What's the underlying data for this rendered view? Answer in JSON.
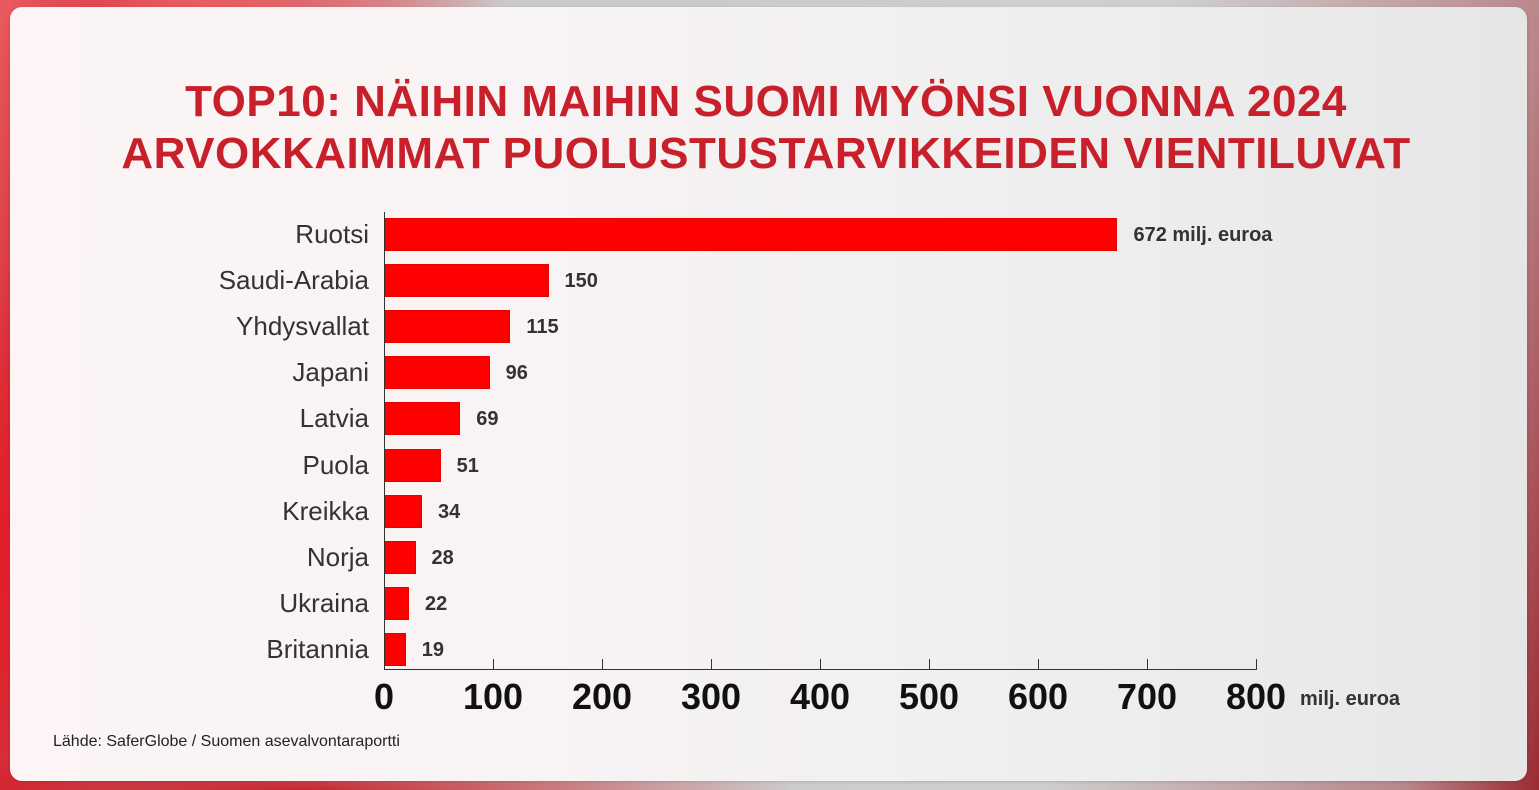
{
  "title": {
    "line1": "TOP10: NÄIHIN MAIHIN SUOMI MYÖNSI VUONNA 2024",
    "line2": "ARVOKKAIMMAT PUOLUSTUSTARVIKKEIDEN VIENTILUVAT"
  },
  "source": "Lähde: SaferGlobe / Suomen asevalvontaraportti",
  "colors": {
    "title": "#c8202b",
    "bar": "#ff0000",
    "text": "#333333"
  },
  "chart_data": {
    "type": "bar",
    "orientation": "horizontal",
    "title": "TOP10: NÄIHIN MAIHIN SUOMI MYÖNSI VUONNA 2024 ARVOKKAIMMAT PUOLUSTUSTARVIKKEIDEN VIENTILUVAT",
    "categories": [
      "Ruotsi",
      "Saudi-Arabia",
      "Yhdysvallat",
      "Japani",
      "Latvia",
      "Puola",
      "Kreikka",
      "Norja",
      "Ukraina",
      "Britannia"
    ],
    "values": [
      672,
      150,
      115,
      96,
      69,
      51,
      34,
      28,
      22,
      19
    ],
    "value_labels": [
      "672 milj. euroa",
      "150",
      "115",
      "96",
      "69",
      "51",
      "34",
      "28",
      "22",
      "19"
    ],
    "xlabel": "milj. euroa",
    "ylabel": "",
    "xlim": [
      0,
      800
    ],
    "xticks": [
      "0",
      "100",
      "200",
      "300",
      "400",
      "500",
      "600",
      "700",
      "800"
    ],
    "grid": false,
    "legend": null,
    "source": "Lähde: SaferGlobe / Suomen asevalvontaraportti"
  }
}
